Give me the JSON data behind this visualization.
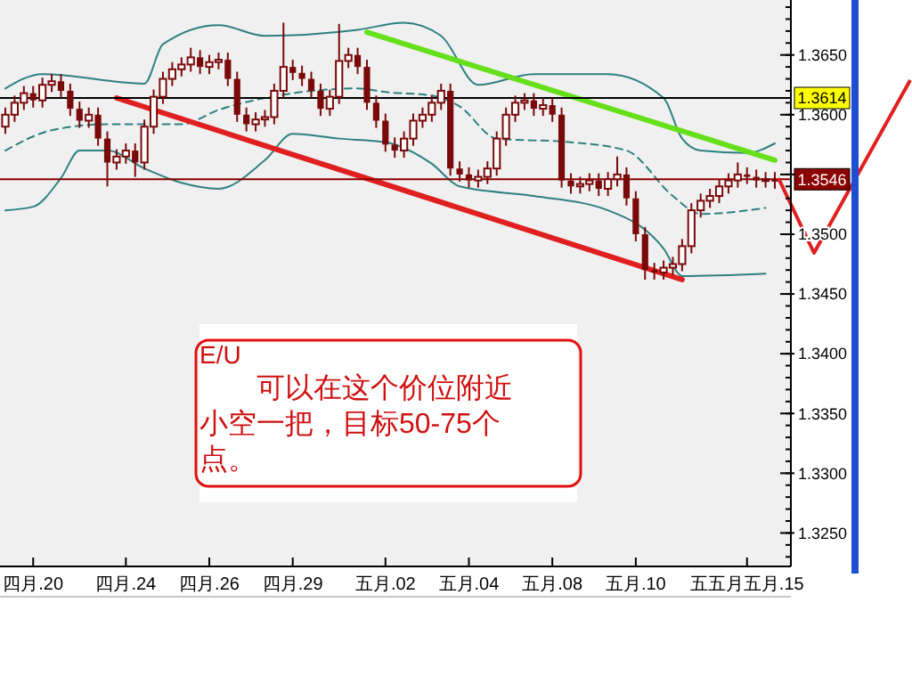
{
  "chart_data": {
    "type": "candlestick",
    "color": "#7a0a0a",
    "categories": [
      null,
      null,
      null,
      "四月.20",
      null,
      null,
      null,
      null,
      null,
      null,
      null,
      null,
      null,
      "四月.24",
      null,
      null,
      null,
      null,
      null,
      null,
      null,
      null,
      "四月.26",
      null,
      null,
      null,
      null,
      null,
      null,
      null,
      null,
      "四月.29",
      null,
      null,
      null,
      null,
      null,
      null,
      null,
      null,
      null,
      "五月.02",
      null,
      null,
      null,
      null,
      null,
      null,
      null,
      null,
      "五月.04",
      null,
      null,
      null,
      null,
      null,
      null,
      null,
      null,
      "五月.08",
      null,
      null,
      null,
      null,
      null,
      null,
      null,
      null,
      "五月.10",
      null,
      null,
      null,
      null,
      null,
      null,
      null,
      null,
      null,
      null,
      null,
      "五五月五月.15",
      null,
      null,
      null
    ],
    "ohlc": [
      [
        1.359,
        1.3606,
        1.3584,
        1.36
      ],
      [
        1.36,
        1.3616,
        1.3594,
        1.361
      ],
      [
        1.361,
        1.3624,
        1.3604,
        1.3618
      ],
      [
        1.3618,
        1.3624,
        1.3606,
        1.3612
      ],
      [
        1.3612,
        1.3631,
        1.3606,
        1.3625
      ],
      [
        1.3625,
        1.3634,
        1.3619,
        1.3628
      ],
      [
        1.3628,
        1.3634,
        1.3614,
        1.362
      ],
      [
        1.362,
        1.3626,
        1.3599,
        1.3605
      ],
      [
        1.3605,
        1.3611,
        1.3589,
        1.3595
      ],
      [
        1.3595,
        1.3606,
        1.3589,
        1.36
      ],
      [
        1.36,
        1.3606,
        1.3574,
        1.358
      ],
      [
        1.358,
        1.3586,
        1.354,
        1.356
      ],
      [
        1.356,
        1.3571,
        1.3554,
        1.3565
      ],
      [
        1.3565,
        1.3576,
        1.3559,
        1.357
      ],
      [
        1.357,
        1.3576,
        1.3548,
        1.356
      ],
      [
        1.356,
        1.3596,
        1.3554,
        1.359
      ],
      [
        1.359,
        1.3621,
        1.3584,
        1.3615
      ],
      [
        1.3615,
        1.3636,
        1.3609,
        1.363
      ],
      [
        1.363,
        1.3644,
        1.3624,
        1.3638
      ],
      [
        1.3638,
        1.3648,
        1.3632,
        1.3642
      ],
      [
        1.3642,
        1.3656,
        1.3636,
        1.3648
      ],
      [
        1.3648,
        1.3654,
        1.3634,
        1.364
      ],
      [
        1.364,
        1.365,
        1.3634,
        1.3644
      ],
      [
        1.3644,
        1.3652,
        1.3638,
        1.3646
      ],
      [
        1.3646,
        1.3652,
        1.3624,
        1.363
      ],
      [
        1.363,
        1.3636,
        1.3594,
        1.36
      ],
      [
        1.36,
        1.3606,
        1.3586,
        1.3592
      ],
      [
        1.3592,
        1.3602,
        1.3586,
        1.3596
      ],
      [
        1.3596,
        1.3604,
        1.359,
        1.3598
      ],
      [
        1.3598,
        1.3626,
        1.3592,
        1.362
      ],
      [
        1.362,
        1.3677,
        1.3614,
        1.364
      ],
      [
        1.364,
        1.3646,
        1.3629,
        1.3635
      ],
      [
        1.3635,
        1.3641,
        1.3624,
        1.363
      ],
      [
        1.363,
        1.3636,
        1.3614,
        1.362
      ],
      [
        1.362,
        1.3626,
        1.3599,
        1.3605
      ],
      [
        1.3605,
        1.3621,
        1.3599,
        1.3615
      ],
      [
        1.3615,
        1.3676,
        1.3609,
        1.3645
      ],
      [
        1.3645,
        1.3656,
        1.3639,
        1.365
      ],
      [
        1.365,
        1.3656,
        1.3634,
        1.364
      ],
      [
        1.364,
        1.3646,
        1.3604,
        1.361
      ],
      [
        1.361,
        1.3616,
        1.3589,
        1.3595
      ],
      [
        1.3595,
        1.3601,
        1.3569,
        1.3575
      ],
      [
        1.3575,
        1.3581,
        1.3564,
        1.357
      ],
      [
        1.357,
        1.3586,
        1.3564,
        1.358
      ],
      [
        1.358,
        1.3601,
        1.3574,
        1.3595
      ],
      [
        1.3595,
        1.3606,
        1.3589,
        1.36
      ],
      [
        1.36,
        1.3616,
        1.3594,
        1.361
      ],
      [
        1.361,
        1.3626,
        1.3604,
        1.362
      ],
      [
        1.362,
        1.3626,
        1.3549,
        1.3555
      ],
      [
        1.3555,
        1.3561,
        1.3544,
        1.355
      ],
      [
        1.355,
        1.3556,
        1.3539,
        1.3545
      ],
      [
        1.3545,
        1.3554,
        1.3539,
        1.3548
      ],
      [
        1.3548,
        1.3561,
        1.3542,
        1.3555
      ],
      [
        1.3555,
        1.3586,
        1.3549,
        1.358
      ],
      [
        1.358,
        1.3606,
        1.3574,
        1.36
      ],
      [
        1.36,
        1.3616,
        1.3594,
        1.361
      ],
      [
        1.361,
        1.3618,
        1.3604,
        1.3612
      ],
      [
        1.3612,
        1.3618,
        1.3599,
        1.3605
      ],
      [
        1.3605,
        1.3614,
        1.3599,
        1.3608
      ],
      [
        1.3608,
        1.3614,
        1.3594,
        1.36
      ],
      [
        1.36,
        1.3606,
        1.3539,
        1.3545
      ],
      [
        1.3545,
        1.3551,
        1.3534,
        1.354
      ],
      [
        1.354,
        1.3548,
        1.3534,
        1.3542
      ],
      [
        1.3542,
        1.3551,
        1.3536,
        1.3545
      ],
      [
        1.3545,
        1.3551,
        1.3532,
        1.3538
      ],
      [
        1.3538,
        1.3552,
        1.3532,
        1.3546
      ],
      [
        1.3546,
        1.3565,
        1.354,
        1.355
      ],
      [
        1.355,
        1.3556,
        1.3524,
        1.353
      ],
      [
        1.353,
        1.3536,
        1.3494,
        1.35
      ],
      [
        1.35,
        1.3506,
        1.3462,
        1.347
      ],
      [
        1.347,
        1.3476,
        1.3462,
        1.3468
      ],
      [
        1.3468,
        1.3478,
        1.3462,
        1.3472
      ],
      [
        1.3472,
        1.3481,
        1.3466,
        1.3475
      ],
      [
        1.3475,
        1.3496,
        1.3469,
        1.349
      ],
      [
        1.349,
        1.3526,
        1.3484,
        1.352
      ],
      [
        1.352,
        1.3534,
        1.3514,
        1.3528
      ],
      [
        1.3528,
        1.3538,
        1.3522,
        1.3532
      ],
      [
        1.3532,
        1.3546,
        1.3526,
        1.354
      ],
      [
        1.354,
        1.3551,
        1.3534,
        1.3545
      ],
      [
        1.3545,
        1.356,
        1.3539,
        1.355
      ],
      [
        1.355,
        1.3556,
        1.3542,
        1.3548
      ],
      [
        1.3548,
        1.3554,
        1.3539,
        1.3545
      ],
      [
        1.3545,
        1.3552,
        1.3539,
        1.3546
      ],
      [
        1.3546,
        1.3552,
        1.3538,
        1.3544
      ]
    ],
    "series": [
      {
        "type": "line",
        "color": "#2f8080",
        "line_style": "solid",
        "values": [
          1.3622,
          null,
          null,
          null,
          1.3634,
          null,
          null,
          null,
          null,
          null,
          null,
          null,
          null,
          null,
          null,
          1.3626,
          null,
          1.3659,
          null,
          null,
          null,
          null,
          null,
          1.3675,
          null,
          null,
          null,
          null,
          1.3666,
          null,
          null,
          null,
          null,
          null,
          null,
          null,
          null,
          null,
          1.3671,
          null,
          null,
          null,
          null,
          1.3677,
          null,
          null,
          null,
          1.3666,
          null,
          null,
          null,
          1.3625,
          null,
          null,
          null,
          null,
          null,
          1.3634,
          null,
          null,
          null,
          null,
          null,
          null,
          null,
          1.3634,
          null,
          null,
          null,
          null,
          null,
          1.3614,
          null,
          1.358,
          null,
          1.357,
          null,
          null,
          null,
          null,
          1.3568,
          null,
          null,
          1.3576
        ]
      },
      {
        "type": "line",
        "color": "#2f8080",
        "line_style": "dashed",
        "values": [
          1.357,
          null,
          null,
          null,
          null,
          1.3587,
          null,
          null,
          null,
          null,
          null,
          1.3592,
          null,
          null,
          null,
          null,
          null,
          null,
          null,
          1.3592,
          null,
          null,
          null,
          1.3604,
          null,
          null,
          null,
          null,
          1.3614,
          null,
          null,
          null,
          1.3619,
          null,
          null,
          null,
          null,
          null,
          1.3622,
          null,
          null,
          1.3619,
          null,
          null,
          null,
          null,
          1.3616,
          null,
          null,
          1.3607,
          null,
          null,
          null,
          1.358,
          null,
          null,
          null,
          null,
          null,
          null,
          null,
          1.3577,
          null,
          null,
          null,
          null,
          null,
          1.357,
          null,
          null,
          null,
          null,
          1.3532,
          null,
          null,
          1.3517,
          null,
          null,
          null,
          null,
          null,
          null,
          1.3522,
          null
        ]
      },
      {
        "type": "line",
        "color": "#2f8080",
        "line_style": "solid",
        "values": [
          1.352,
          null,
          null,
          1.3523,
          null,
          null,
          1.3547,
          null,
          1.357,
          null,
          null,
          1.357,
          null,
          null,
          null,
          1.3555,
          null,
          null,
          null,
          1.3543,
          null,
          null,
          null,
          1.3538,
          null,
          null,
          null,
          null,
          1.3562,
          null,
          null,
          1.3584,
          null,
          null,
          null,
          null,
          1.358,
          null,
          null,
          null,
          null,
          1.3577,
          null,
          null,
          null,
          null,
          1.3559,
          null,
          null,
          1.354,
          null,
          null,
          null,
          null,
          null,
          null,
          null,
          1.3532,
          null,
          null,
          null,
          null,
          null,
          null,
          null,
          1.352,
          null,
          null,
          null,
          null,
          null,
          1.3488,
          null,
          1.3465,
          null,
          null,
          null,
          null,
          null,
          null,
          null,
          null,
          1.3467,
          null
        ]
      },
      {
        "type": "line",
        "color": "#e02020",
        "line_style": "solid",
        "values": [
          null,
          null,
          null,
          null,
          null,
          null,
          null,
          null,
          null,
          null,
          null,
          null,
          1.3614,
          null,
          null,
          null,
          null,
          null,
          null,
          null,
          null,
          null,
          null,
          null,
          null,
          null,
          null,
          null,
          null,
          null,
          null,
          null,
          null,
          null,
          null,
          null,
          null,
          null,
          null,
          null,
          null,
          null,
          null,
          null,
          null,
          null,
          null,
          null,
          null,
          null,
          null,
          null,
          null,
          null,
          null,
          null,
          null,
          null,
          null,
          null,
          null,
          null,
          null,
          null,
          null,
          null,
          null,
          null,
          null,
          null,
          null,
          null,
          null,
          1.3462,
          null,
          null,
          null,
          null,
          null,
          null,
          null,
          null,
          null,
          null
        ]
      },
      {
        "type": "line",
        "color": "#66e01a",
        "line_style": "solid",
        "values": [
          null,
          null,
          null,
          null,
          null,
          null,
          null,
          null,
          null,
          null,
          null,
          null,
          null,
          null,
          null,
          null,
          null,
          null,
          null,
          null,
          null,
          null,
          null,
          null,
          null,
          null,
          null,
          null,
          null,
          null,
          null,
          null,
          null,
          null,
          null,
          null,
          null,
          null,
          null,
          1.3669,
          null,
          null,
          null,
          null,
          null,
          null,
          null,
          null,
          null,
          null,
          null,
          null,
          null,
          null,
          null,
          null,
          null,
          null,
          null,
          null,
          null,
          null,
          null,
          null,
          null,
          null,
          null,
          null,
          null,
          null,
          null,
          null,
          null,
          null,
          null,
          null,
          null,
          null,
          null,
          null,
          null,
          null,
          null,
          1.3562
        ]
      }
    ],
    "ylim": [
      1.3222,
      1.3693
    ],
    "yticks": [
      {
        "value": 1.325,
        "label": "1.3250"
      },
      {
        "value": 1.33,
        "label": "1.3300"
      },
      {
        "value": 1.335,
        "label": "1.3350"
      },
      {
        "value": 1.34,
        "label": "1.3400"
      },
      {
        "value": 1.345,
        "label": "1.3450"
      },
      {
        "value": 1.35,
        "label": "1.3500"
      },
      {
        "value": 1.355,
        "label": null
      },
      {
        "value": 1.36,
        "label": "1.3600"
      },
      {
        "value": 1.365,
        "label": "1.3650"
      }
    ],
    "ref_lines": [
      {
        "axis": "y",
        "value": 1.3614,
        "label": "1.3614",
        "color": "#000000"
      },
      {
        "axis": "y",
        "value": 1.3546,
        "label": "1.3546",
        "color": "#8b0000"
      }
    ],
    "annotations": [
      "E/U",
      "可以在这个价位附近小空一把，目标50-75个点。"
    ]
  }
}
